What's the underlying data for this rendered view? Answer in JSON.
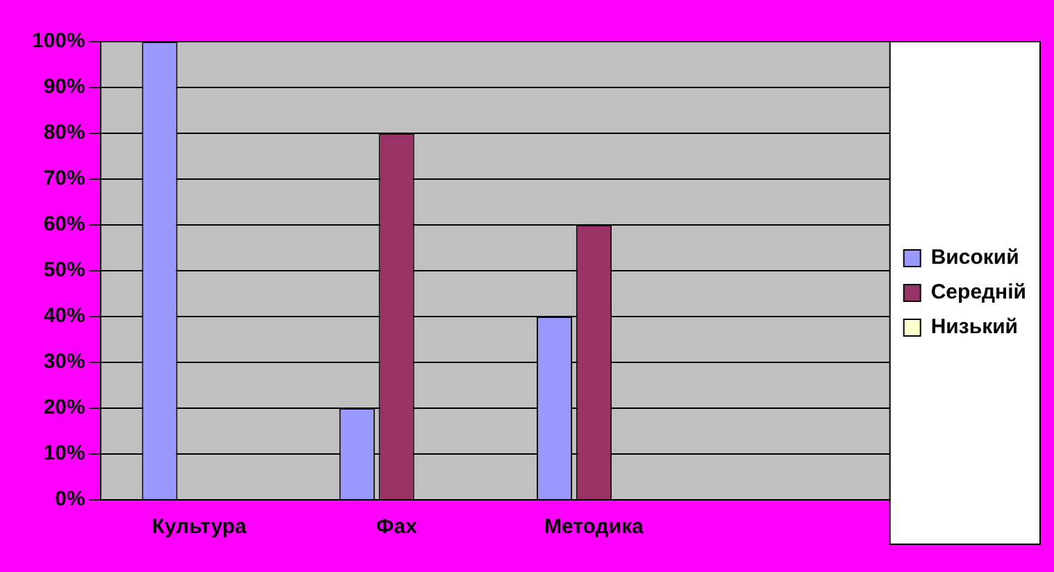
{
  "chart_data": {
    "type": "bar",
    "categories": [
      "Культура",
      "Фах",
      "Методика",
      null
    ],
    "series": [
      {
        "name": "Високий",
        "color": "#9999ff",
        "values": [
          100,
          20,
          40,
          null
        ]
      },
      {
        "name": "Середній",
        "color": "#993366",
        "values": [
          0,
          80,
          60,
          null
        ]
      },
      {
        "name": "Низький",
        "color": "#ffffcc",
        "values": [
          0,
          0,
          0,
          null
        ]
      }
    ],
    "ylim": [
      0,
      100
    ],
    "yticks": [
      {
        "value": 0,
        "label": "0%"
      },
      {
        "value": 10,
        "label": "10%"
      },
      {
        "value": 20,
        "label": "20%"
      },
      {
        "value": 30,
        "label": "30%"
      },
      {
        "value": 40,
        "label": "40%"
      },
      {
        "value": 50,
        "label": "50%"
      },
      {
        "value": 60,
        "label": "60%"
      },
      {
        "value": 70,
        "label": "70%"
      },
      {
        "value": 80,
        "label": "80%"
      },
      {
        "value": 90,
        "label": "90%"
      },
      {
        "value": 100,
        "label": "100%"
      }
    ],
    "grid": "y",
    "legend": "right"
  }
}
